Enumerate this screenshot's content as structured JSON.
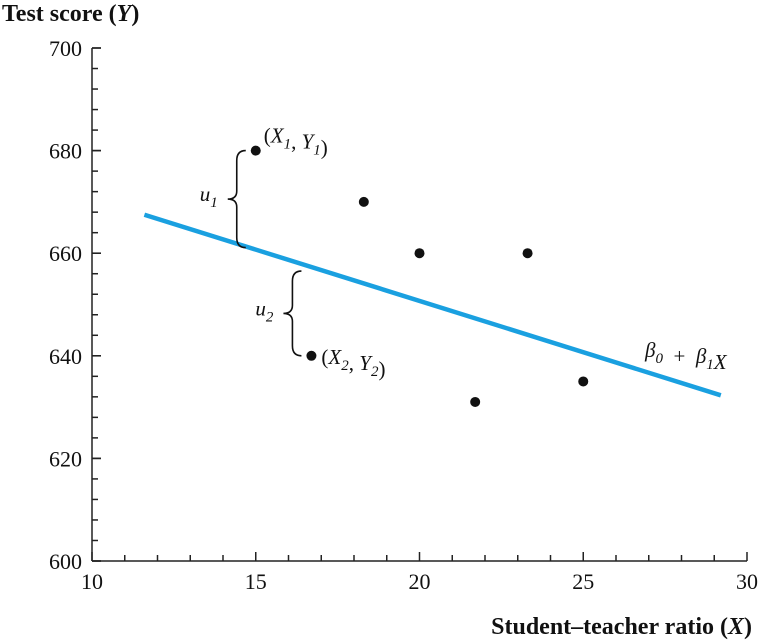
{
  "chart_data": {
    "type": "scatter",
    "title": "",
    "ylabel": "Test score",
    "ylabel_var": "Y",
    "xlabel": "Student–teacher ratio",
    "xlabel_var": "X",
    "xlim": [
      10,
      30
    ],
    "ylim": [
      600,
      700
    ],
    "xticks": [
      10,
      15,
      20,
      25,
      30
    ],
    "yticks": [
      600,
      620,
      640,
      660,
      680,
      700
    ],
    "xminor_step": 1,
    "yminor_step": 4,
    "points": [
      {
        "x": 15.0,
        "y": 680
      },
      {
        "x": 18.3,
        "y": 670
      },
      {
        "x": 20.0,
        "y": 660
      },
      {
        "x": 23.3,
        "y": 660
      },
      {
        "x": 16.7,
        "y": 640
      },
      {
        "x": 21.7,
        "y": 631
      },
      {
        "x": 25.0,
        "y": 635
      }
    ],
    "regression_line": {
      "label": "β0 + β1X",
      "color": "#1aa0e0",
      "x_start": 11.6,
      "y_start": 667.5,
      "x_end": 29.2,
      "y_end": 632.3
    },
    "annotations": {
      "point1_label": "(X1, Y1)",
      "point2_label": "(X2, Y2)",
      "residual1_label": "u1",
      "residual2_label": "u2"
    }
  }
}
